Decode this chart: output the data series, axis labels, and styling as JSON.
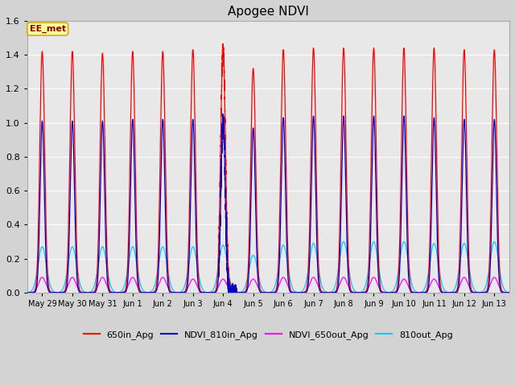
{
  "title": "Apogee NDVI",
  "title_fontsize": 11,
  "background_color": "#d3d3d3",
  "plot_bg_color": "#e8e8e8",
  "ylim": [
    0.0,
    1.6
  ],
  "yticks": [
    0.0,
    0.2,
    0.4,
    0.6,
    0.8,
    1.0,
    1.2,
    1.4,
    1.6
  ],
  "legend_entries": [
    "650in_Apg",
    "NDVI_810in_Apg",
    "NDVI_650out_Apg",
    "810out_Apg"
  ],
  "legend_colors": [
    "#ff0000",
    "#0000cc",
    "#ff00ff",
    "#00ccff"
  ],
  "annotation_text": "EE_met",
  "annotation_color": "#8b0000",
  "annotation_bg": "#ffff99",
  "annotation_border": "#c8a000",
  "num_peaks": 16,
  "red_peak_heights": [
    1.42,
    1.42,
    1.41,
    1.42,
    1.42,
    1.43,
    1.44,
    1.32,
    1.43,
    1.44,
    1.44,
    1.44,
    1.44,
    1.44,
    1.43,
    1.43
  ],
  "blue_peak_heights": [
    1.01,
    1.01,
    1.01,
    1.02,
    1.02,
    1.02,
    1.02,
    0.97,
    1.03,
    1.04,
    1.04,
    1.04,
    1.04,
    1.03,
    1.02,
    1.02
  ],
  "magenta_peak_heights": [
    0.09,
    0.09,
    0.09,
    0.09,
    0.09,
    0.08,
    0.08,
    0.08,
    0.09,
    0.09,
    0.09,
    0.09,
    0.08,
    0.08,
    0.09,
    0.09
  ],
  "cyan_peak_heights": [
    0.27,
    0.27,
    0.27,
    0.27,
    0.27,
    0.27,
    0.28,
    0.22,
    0.28,
    0.29,
    0.3,
    0.3,
    0.3,
    0.29,
    0.29,
    0.3
  ],
  "red_sigma": 0.08,
  "blue_sigma": 0.07,
  "magenta_sigma": 0.12,
  "cyan_sigma": 0.14,
  "x_tick_labels": [
    "May 29",
    "May 30",
    "May 31",
    "Jun 1",
    "Jun 2",
    "Jun 3",
    "Jun 4",
    "Jun 5",
    "Jun 6",
    "Jun 7",
    "Jun 8",
    "Jun 9",
    "Jun 10",
    "Jun 11",
    "Jun 12",
    "Jun 13"
  ],
  "x_tick_positions": [
    0,
    1,
    2,
    3,
    4,
    5,
    6,
    7,
    8,
    9,
    10,
    11,
    12,
    13,
    14,
    15
  ]
}
